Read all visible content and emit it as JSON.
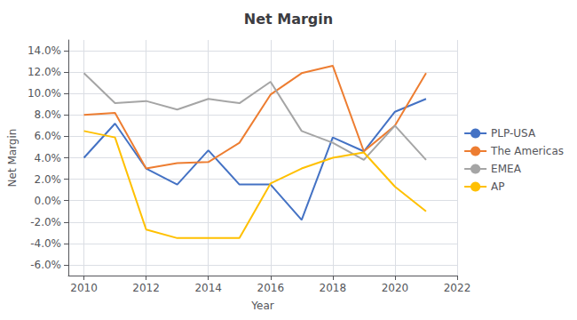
{
  "chart_data": {
    "type": "line",
    "title": "Net Margin",
    "xlabel": "Year",
    "ylabel": "Net Margin",
    "x": [
      2010,
      2011,
      2012,
      2013,
      2014,
      2015,
      2016,
      2017,
      2018,
      2019,
      2020,
      2021
    ],
    "series": [
      {
        "name": "PLP-USA",
        "color": "#4472C4",
        "values": [
          0.04,
          0.072,
          0.03,
          0.015,
          0.047,
          0.015,
          0.015,
          -0.018,
          0.059,
          0.046,
          0.083,
          0.095
        ]
      },
      {
        "name": "The Americas",
        "color": "#ED7D31",
        "values": [
          0.08,
          0.082,
          0.03,
          0.035,
          0.036,
          0.054,
          0.099,
          0.119,
          0.126,
          0.046,
          0.07,
          0.119
        ]
      },
      {
        "name": "EMEA",
        "color": "#A5A5A5",
        "values": [
          0.119,
          0.091,
          0.093,
          0.085,
          0.095,
          0.091,
          0.111,
          0.065,
          0.054,
          0.038,
          0.07,
          0.038
        ]
      },
      {
        "name": "AP",
        "color": "#FFC000",
        "values": [
          0.065,
          0.059,
          -0.027,
          -0.035,
          -0.035,
          -0.035,
          0.016,
          0.03,
          0.04,
          0.045,
          0.013,
          -0.01
        ]
      }
    ],
    "xlim": [
      2009.5,
      2022
    ],
    "xticks": [
      2010,
      2012,
      2014,
      2016,
      2018,
      2020,
      2022
    ],
    "ylim": [
      -0.07,
      0.15
    ],
    "yticks": [
      {
        "value": -0.06,
        "label": "-6.0%"
      },
      {
        "value": -0.04,
        "label": "-4.0%"
      },
      {
        "value": -0.02,
        "label": "-2.0%"
      },
      {
        "value": 0.0,
        "label": "0.0%"
      },
      {
        "value": 0.02,
        "label": "2.0%"
      },
      {
        "value": 0.04,
        "label": "4.0%"
      },
      {
        "value": 0.06,
        "label": "6.0%"
      },
      {
        "value": 0.08,
        "label": "8.0%"
      },
      {
        "value": 0.1,
        "label": "10.0%"
      },
      {
        "value": 0.12,
        "label": "12.0%"
      },
      {
        "value": 0.14,
        "label": "14.0%"
      }
    ],
    "grid": true,
    "legend": "right"
  }
}
